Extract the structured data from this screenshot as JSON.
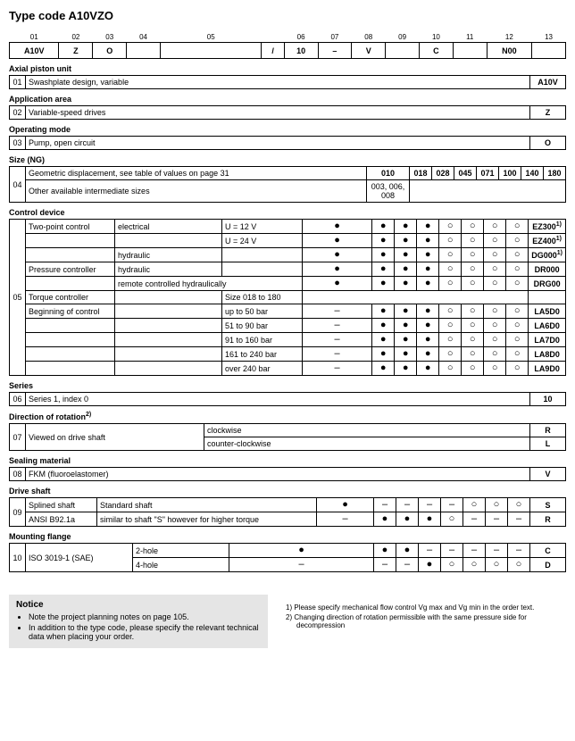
{
  "title": "Type code A10VZO",
  "positions": [
    "01",
    "02",
    "03",
    "04",
    "05",
    "06",
    "07",
    "08",
    "09",
    "10",
    "11",
    "12",
    "13"
  ],
  "codeRow": [
    "A10V",
    "Z",
    "O",
    "",
    "",
    "/",
    "10",
    "–",
    "V",
    "",
    "C",
    "",
    "N00",
    ""
  ],
  "sections": {
    "axial": {
      "title": "Axial piston unit",
      "num": "01",
      "text": "Swashplate design, variable",
      "code": "A10V"
    },
    "app": {
      "title": "Application area",
      "num": "02",
      "text": "Variable-speed drives",
      "code": "Z"
    },
    "op": {
      "title": "Operating mode",
      "num": "03",
      "text": "Pump, open circuit",
      "code": "O"
    },
    "size": {
      "title": "Size (NG)",
      "num": "04",
      "row1": "Geometric displacement, see table of values on page 31",
      "row2": "Other available intermediate sizes",
      "row1cols": [
        "010",
        "018",
        "028",
        "045",
        "071",
        "100",
        "140",
        "180"
      ],
      "row2val": "003, 006, 008"
    },
    "control": {
      "title": "Control device",
      "num": "05",
      "rows": [
        {
          "c1": "Two-point control",
          "c2": "electrical",
          "c3": "U = 12 V",
          "m": [
            "●",
            "",
            "●",
            "●",
            "●",
            "○",
            "○",
            "○",
            "○"
          ],
          "code": "EZ300",
          "sup": "1)"
        },
        {
          "c1": "",
          "c2": "",
          "c3": "U = 24 V",
          "m": [
            "●",
            "",
            "●",
            "●",
            "●",
            "○",
            "○",
            "○",
            "○"
          ],
          "code": "EZ400",
          "sup": "1)"
        },
        {
          "c1": "",
          "c2": "hydraulic",
          "c3": "",
          "m": [
            "●",
            "",
            "●",
            "●",
            "●",
            "○",
            "○",
            "○",
            "○"
          ],
          "code": "DG000",
          "sup": "1)"
        },
        {
          "c1": "Pressure controller",
          "c2": "hydraulic",
          "c3": "",
          "m": [
            "●",
            "",
            "●",
            "●",
            "●",
            "○",
            "○",
            "○",
            "○"
          ],
          "code": "DR000",
          "sup": ""
        },
        {
          "c1": "",
          "c2": "remote controlled hydraulically",
          "c3": "",
          "m": [
            "●",
            "",
            "●",
            "●",
            "●",
            "○",
            "○",
            "○",
            "○"
          ],
          "code": "DRG00",
          "sup": ""
        },
        {
          "c1": "Torque controller",
          "c2": "",
          "c3": "Size 018 to 180",
          "m": [
            "",
            "",
            "",
            "",
            "",
            "",
            "",
            "",
            ""
          ],
          "code": "",
          "sup": "",
          "noMarkers": true
        },
        {
          "c1": "Beginning of control",
          "c2": "",
          "c3": "up to 50 bar",
          "m": [
            "–",
            "",
            "●",
            "●",
            "●",
            "○",
            "○",
            "○",
            "○"
          ],
          "code": "LA5D0",
          "sup": ""
        },
        {
          "c1": "",
          "c2": "",
          "c3": "51 to 90 bar",
          "m": [
            "–",
            "",
            "●",
            "●",
            "●",
            "○",
            "○",
            "○",
            "○"
          ],
          "code": "LA6D0",
          "sup": ""
        },
        {
          "c1": "",
          "c2": "",
          "c3": "91 to 160 bar",
          "m": [
            "–",
            "",
            "●",
            "●",
            "●",
            "○",
            "○",
            "○",
            "○"
          ],
          "code": "LA7D0",
          "sup": ""
        },
        {
          "c1": "",
          "c2": "",
          "c3": "161 to 240 bar",
          "m": [
            "–",
            "",
            "●",
            "●",
            "●",
            "○",
            "○",
            "○",
            "○"
          ],
          "code": "LA8D0",
          "sup": ""
        },
        {
          "c1": "",
          "c2": "",
          "c3": "over 240 bar",
          "m": [
            "–",
            "",
            "●",
            "●",
            "●",
            "○",
            "○",
            "○",
            "○"
          ],
          "code": "LA9D0",
          "sup": ""
        }
      ]
    },
    "series": {
      "title": "Series",
      "num": "06",
      "text": "Series 1, index 0",
      "code": "10"
    },
    "dir": {
      "title": "Direction of rotation",
      "sup": "2)",
      "num": "07",
      "text": "Viewed on drive shaft",
      "rows": [
        {
          "c": "clockwise",
          "code": "R"
        },
        {
          "c": "counter-clockwise",
          "code": "L"
        }
      ]
    },
    "seal": {
      "title": "Sealing material",
      "num": "08",
      "text": "FKM (fluoroelastomer)",
      "code": "V"
    },
    "shaft": {
      "title": "Drive shaft",
      "num": "09",
      "rows": [
        {
          "c1": "Splined shaft",
          "c2": "Standard shaft",
          "m": [
            "●",
            "",
            "–",
            "–",
            "–",
            "–",
            "○",
            "○",
            "○"
          ],
          "code": "S"
        },
        {
          "c1": "ANSI B92.1a",
          "c2": "similar to shaft \"S\" however for higher torque",
          "m": [
            "–",
            "",
            "●",
            "●",
            "●",
            "○",
            "–",
            "–",
            "–"
          ],
          "code": "R"
        }
      ]
    },
    "flange": {
      "title": "Mounting flange",
      "num": "10",
      "c1": "ISO 3019-1 (SAE)",
      "rows": [
        {
          "c2": "2-hole",
          "m": [
            "●",
            "",
            "●",
            "●",
            "–",
            "–",
            "–",
            "–",
            "–"
          ],
          "code": "C"
        },
        {
          "c2": "4-hole",
          "m": [
            "–",
            "",
            "–",
            "–",
            "●",
            "○",
            "○",
            "○",
            "○"
          ],
          "code": "D"
        }
      ]
    }
  },
  "notice": {
    "title": "Notice",
    "items": [
      "Note the project planning notes on page 105.",
      "In addition to the type code, please specify the relevant technical data when placing your order."
    ]
  },
  "footnotes": [
    "1) Please specify mechanical flow control Vg max and Vg min in the order text.",
    "2) Changing direction of rotation permissible with the same pressure side for decompression"
  ]
}
